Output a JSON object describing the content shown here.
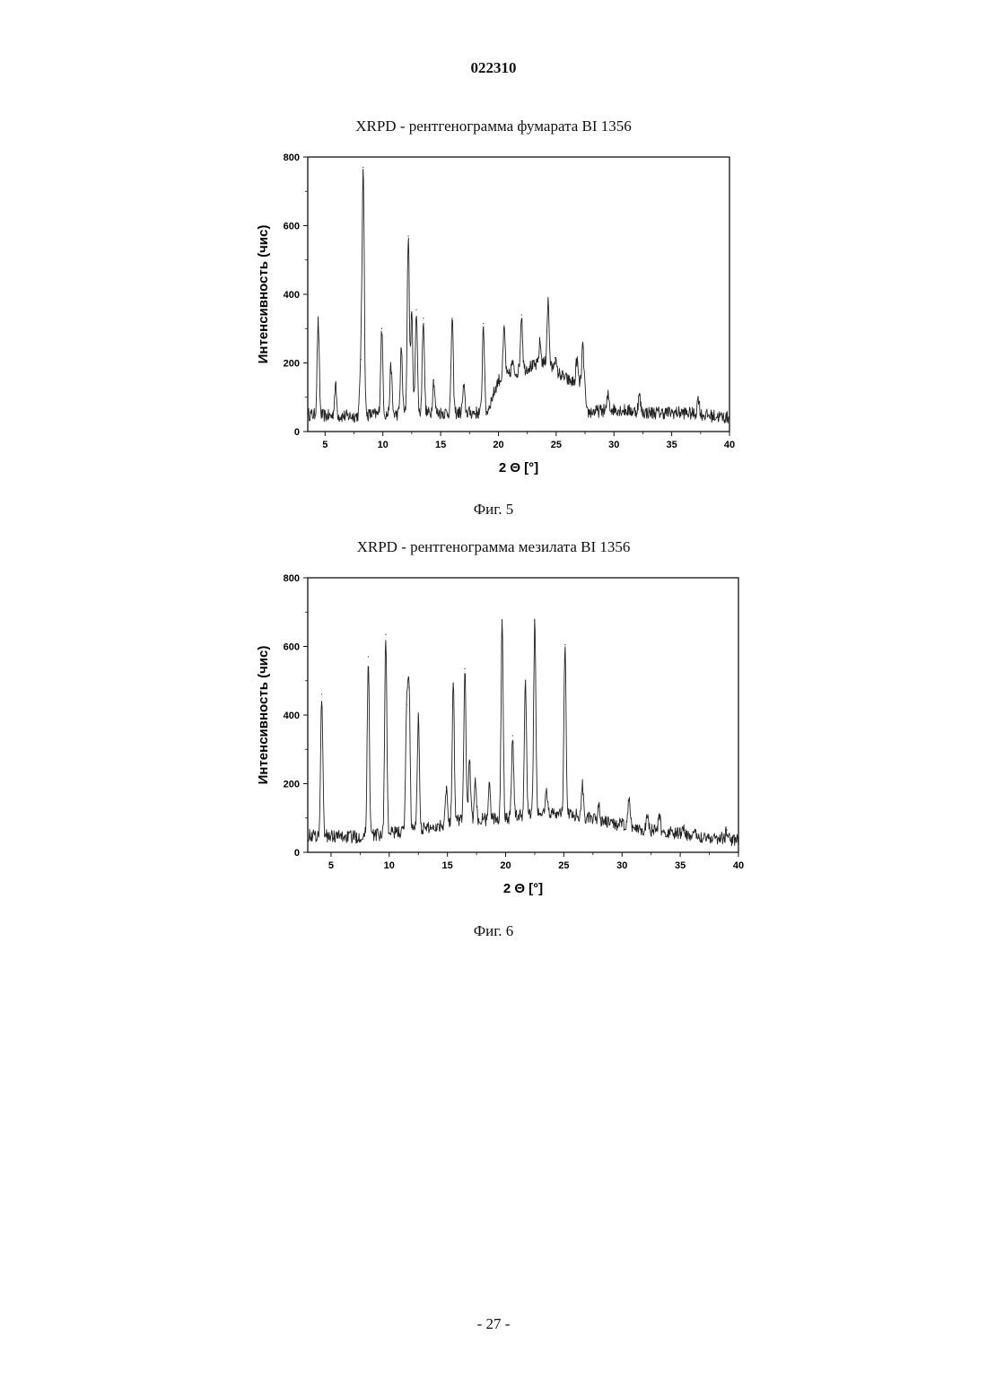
{
  "header": {
    "doc_number": "022310"
  },
  "footer": {
    "page_number": "- 27 -"
  },
  "chart_data": [
    {
      "type": "line",
      "title": "XRPD - рентгенограмма фумарата BI 1356",
      "caption": "Фиг. 5",
      "xlabel": "2 Θ  [°]",
      "ylabel": "Интенсивность (чис)",
      "xlim": [
        3.5,
        40
      ],
      "ylim": [
        0,
        800
      ],
      "xticks": [
        5,
        10,
        15,
        20,
        25,
        30,
        35,
        40
      ],
      "yticks": [
        0,
        200,
        400,
        600,
        800
      ],
      "grid": false,
      "series": [
        {
          "baseline": [
            [
              3.5,
              50
            ],
            [
              5.5,
              45
            ],
            [
              7.5,
              45
            ],
            [
              9,
              50
            ],
            [
              11,
              50
            ],
            [
              15,
              55
            ],
            [
              19,
              55
            ],
            [
              20,
              150
            ],
            [
              22,
              180
            ],
            [
              24,
              200
            ],
            [
              26,
              150
            ],
            [
              27.5,
              130
            ],
            [
              27.6,
              55
            ],
            [
              30,
              65
            ],
            [
              33,
              55
            ],
            [
              36,
              55
            ],
            [
              40,
              40
            ]
          ],
          "peaks": [
            [
              4.4,
              320
            ],
            [
              5.9,
              135
            ],
            [
              8.3,
              770
            ],
            [
              8.1,
              210
            ],
            [
              9.9,
              300
            ],
            [
              10.7,
              190
            ],
            [
              11.6,
              240
            ],
            [
              12.2,
              570
            ],
            [
              12.5,
              340
            ],
            [
              12.9,
              355
            ],
            [
              13.5,
              330
            ],
            [
              14.4,
              150
            ],
            [
              16.0,
              330
            ],
            [
              17.0,
              130
            ],
            [
              18.7,
              315
            ],
            [
              20.5,
              300
            ],
            [
              21.2,
              200
            ],
            [
              22.0,
              340
            ],
            [
              22.7,
              190
            ],
            [
              23.6,
              260
            ],
            [
              24.3,
              380
            ],
            [
              24.9,
              215
            ],
            [
              25.6,
              160
            ],
            [
              26.8,
              210
            ],
            [
              27.3,
              245
            ],
            [
              29.5,
              105
            ],
            [
              32.2,
              105
            ],
            [
              37.3,
              100
            ]
          ]
        }
      ]
    },
    {
      "type": "line",
      "title": "XRPD - рентгенограмма мезилата BI 1356",
      "caption": "Фиг. 6",
      "xlabel": "2 Θ  [°]",
      "ylabel": "Интенсивность (чис)",
      "xlim": [
        3,
        40
      ],
      "ylim": [
        0,
        800
      ],
      "xticks": [
        5,
        10,
        15,
        20,
        25,
        30,
        35,
        40
      ],
      "yticks": [
        0,
        200,
        400,
        600,
        800
      ],
      "grid": false,
      "series": [
        {
          "baseline": [
            [
              3,
              50
            ],
            [
              7,
              45
            ],
            [
              10,
              55
            ],
            [
              14,
              75
            ],
            [
              16,
              95
            ],
            [
              18,
              95
            ],
            [
              20,
              100
            ],
            [
              22,
              110
            ],
            [
              24,
              115
            ],
            [
              26,
              110
            ],
            [
              28,
              90
            ],
            [
              30,
              80
            ],
            [
              33,
              60
            ],
            [
              36,
              50
            ],
            [
              40,
              35
            ]
          ],
          "peaks": [
            [
              4.2,
              460
            ],
            [
              8.2,
              570
            ],
            [
              9.7,
              635
            ],
            [
              11.7,
              480
            ],
            [
              11.5,
              430
            ],
            [
              12.5,
              395
            ],
            [
              14.9,
              190
            ],
            [
              15.5,
              490
            ],
            [
              16.5,
              535
            ],
            [
              16.9,
              260
            ],
            [
              17.4,
              200
            ],
            [
              18.6,
              190
            ],
            [
              19.7,
              675
            ],
            [
              20.6,
              340
            ],
            [
              21.7,
              500
            ],
            [
              22.5,
              675
            ],
            [
              23.5,
              180
            ],
            [
              25.1,
              605
            ],
            [
              26.6,
              195
            ],
            [
              28,
              140
            ],
            [
              30.6,
              150
            ],
            [
              32.2,
              110
            ],
            [
              33.2,
              110
            ],
            [
              35.2,
              75
            ],
            [
              39,
              65
            ]
          ]
        }
      ]
    }
  ]
}
